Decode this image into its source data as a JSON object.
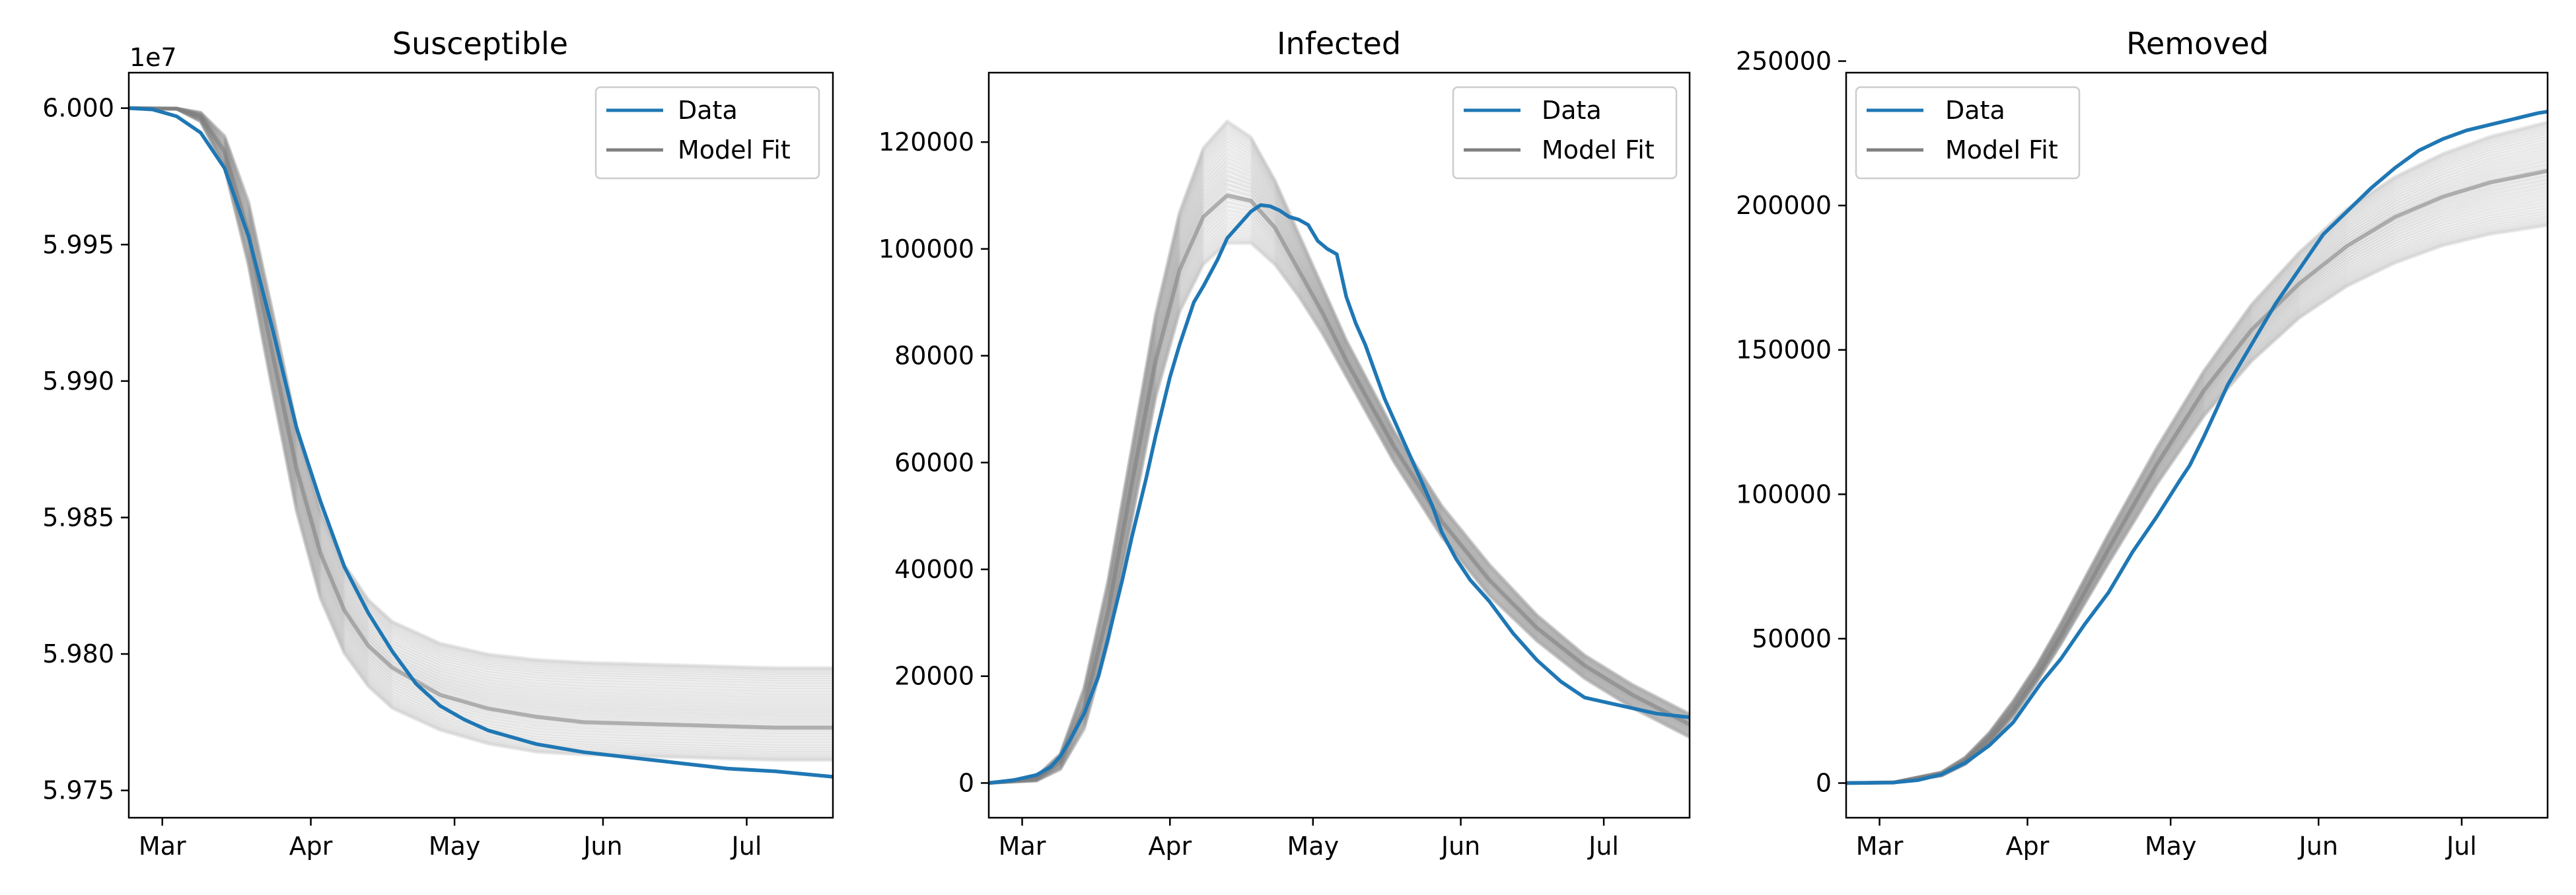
{
  "chart_data": [
    {
      "type": "line",
      "title": "Susceptible",
      "offset_label": "1e7",
      "x_ticks": [
        "Mar",
        "Apr",
        "May",
        "Jun",
        "Jul"
      ],
      "x_tick_days": [
        32,
        63,
        93,
        124,
        154
      ],
      "xlim_days": [
        25,
        172
      ],
      "ylim": [
        5.974,
        6.0013
      ],
      "y_ticks": [
        5.975,
        5.98,
        5.985,
        5.99,
        5.995,
        6.0
      ],
      "y_tick_labels": [
        "5.975",
        "5.980",
        "5.985",
        "5.990",
        "5.995",
        "6.000"
      ],
      "legend": {
        "position": "upper right",
        "entries": [
          "Data",
          "Model Fit"
        ]
      },
      "series": [
        {
          "name": "Data",
          "color": "#1f77b4",
          "x": [
            25,
            30,
            35,
            40,
            45,
            50,
            55,
            60,
            65,
            70,
            75,
            80,
            85,
            90,
            95,
            100,
            110,
            120,
            130,
            140,
            150,
            160,
            172
          ],
          "y": [
            6.0,
            5.99995,
            5.9997,
            5.9991,
            5.9978,
            5.9953,
            5.9919,
            5.9883,
            5.9856,
            5.9832,
            5.9815,
            5.9801,
            5.9789,
            5.9781,
            5.9776,
            5.9772,
            5.9767,
            5.9764,
            5.9762,
            5.976,
            5.9758,
            5.9757,
            5.9755
          ]
        },
        {
          "name": "Model Fit",
          "color": "#808080",
          "type": "ensemble",
          "x": [
            25,
            35,
            40,
            45,
            50,
            55,
            60,
            65,
            70,
            75,
            80,
            90,
            100,
            110,
            120,
            140,
            160,
            172
          ],
          "center": [
            6.0,
            5.99998,
            5.9997,
            5.9984,
            5.9954,
            5.991,
            5.9868,
            5.9837,
            5.9816,
            5.9803,
            5.9795,
            5.9785,
            5.978,
            5.9777,
            5.9775,
            5.9774,
            5.9773,
            5.9773
          ],
          "band_low": [
            6.0,
            5.99997,
            5.9995,
            5.9978,
            5.9942,
            5.9896,
            5.9852,
            5.982,
            5.98,
            5.9788,
            5.978,
            5.9772,
            5.9767,
            5.9764,
            5.9763,
            5.9762,
            5.9761,
            5.9761
          ],
          "band_high": [
            6.0,
            5.99999,
            5.99985,
            5.999,
            5.9966,
            5.9926,
            5.9884,
            5.9853,
            5.9833,
            5.982,
            5.9812,
            5.9804,
            5.98,
            5.9798,
            5.9797,
            5.9796,
            5.9795,
            5.9795
          ]
        }
      ]
    },
    {
      "type": "line",
      "title": "Infected",
      "x_ticks": [
        "Mar",
        "Apr",
        "May",
        "Jun",
        "Jul"
      ],
      "x_tick_days": [
        32,
        63,
        93,
        124,
        154
      ],
      "xlim_days": [
        25,
        172
      ],
      "ylim": [
        -6500,
        133000
      ],
      "y_ticks": [
        0,
        20000,
        40000,
        60000,
        80000,
        100000,
        120000
      ],
      "y_tick_labels": [
        "0",
        "20000",
        "40000",
        "60000",
        "80000",
        "100000",
        "120000"
      ],
      "legend": {
        "position": "upper right",
        "entries": [
          "Data",
          "Model Fit"
        ]
      },
      "series": [
        {
          "name": "Data",
          "color": "#1f77b4",
          "x": [
            25,
            30,
            35,
            38,
            40,
            42,
            45,
            48,
            50,
            53,
            55,
            58,
            60,
            63,
            65,
            68,
            70,
            73,
            75,
            78,
            80,
            82,
            84,
            86,
            88,
            90,
            92,
            94,
            96,
            98,
            100,
            102,
            104,
            106,
            108,
            110,
            112,
            115,
            118,
            120,
            123,
            126,
            130,
            135,
            140,
            145,
            150,
            155,
            160,
            165,
            170,
            172
          ],
          "y": [
            0,
            500,
            1500,
            3000,
            5000,
            8000,
            13000,
            20000,
            27000,
            38000,
            46000,
            57000,
            65000,
            76000,
            82000,
            90000,
            93000,
            98000,
            102000,
            105000,
            107000,
            108200,
            108000,
            107200,
            106000,
            105500,
            104500,
            101500,
            100000,
            99000,
            91000,
            86000,
            82000,
            77000,
            72000,
            68000,
            64000,
            58000,
            52000,
            47000,
            42000,
            38000,
            34000,
            28000,
            23000,
            19000,
            16000,
            15000,
            14000,
            13000,
            12500,
            12300
          ]
        },
        {
          "name": "Model Fit",
          "color": "#808080",
          "type": "ensemble",
          "x": [
            25,
            35,
            40,
            45,
            50,
            55,
            60,
            65,
            70,
            75,
            80,
            85,
            90,
            95,
            100,
            110,
            120,
            130,
            140,
            150,
            160,
            172
          ],
          "center": [
            0,
            800,
            4000,
            14000,
            32000,
            56000,
            79000,
            96000,
            106000,
            110000,
            109000,
            104000,
            96000,
            88000,
            79000,
            63000,
            49000,
            38000,
            29000,
            22000,
            16500,
            11000
          ],
          "band_low": [
            0,
            400,
            2500,
            10000,
            26000,
            49000,
            72000,
            88000,
            97000,
            101000,
            101000,
            97000,
            91000,
            84000,
            76000,
            60000,
            46000,
            35000,
            26500,
            19500,
            14000,
            8500
          ],
          "band_high": [
            0,
            1200,
            5500,
            18000,
            38000,
            63000,
            88000,
            107000,
            119000,
            124000,
            121000,
            113000,
            103000,
            93000,
            83000,
            66000,
            52000,
            41000,
            31500,
            24000,
            18500,
            13000
          ]
        }
      ]
    },
    {
      "type": "line",
      "title": "Removed",
      "x_ticks": [
        "Mar",
        "Apr",
        "May",
        "Jun",
        "Jul"
      ],
      "x_tick_days": [
        32,
        63,
        93,
        124,
        154
      ],
      "xlim_days": [
        25,
        172
      ],
      "ylim": [
        -12000,
        246000
      ],
      "y_ticks": [
        0,
        50000,
        100000,
        150000,
        200000,
        250000
      ],
      "y_tick_labels": [
        "0",
        "50000",
        "100000",
        "150000",
        "200000",
        "250000"
      ],
      "legend": {
        "position": "upper left",
        "entries": [
          "Data",
          "Model Fit"
        ]
      },
      "series": [
        {
          "name": "Data",
          "color": "#1f77b4",
          "x": [
            25,
            35,
            40,
            45,
            50,
            55,
            60,
            63,
            66,
            70,
            75,
            80,
            85,
            90,
            95,
            97,
            100,
            105,
            110,
            115,
            120,
            125,
            130,
            135,
            140,
            145,
            150,
            155,
            160,
            165,
            170,
            172
          ],
          "y": [
            0,
            200,
            1000,
            3000,
            7000,
            13000,
            21000,
            28000,
            35000,
            43000,
            55000,
            66000,
            80000,
            92000,
            105000,
            110000,
            120000,
            138000,
            152000,
            166000,
            178000,
            190000,
            198000,
            206000,
            213000,
            219000,
            223000,
            226000,
            228000,
            230000,
            232000,
            232500
          ]
        },
        {
          "name": "Model Fit",
          "color": "#808080",
          "type": "ensemble",
          "x": [
            25,
            35,
            45,
            50,
            55,
            60,
            65,
            70,
            75,
            80,
            90,
            100,
            110,
            120,
            130,
            140,
            150,
            160,
            172
          ],
          "center": [
            0,
            200,
            3000,
            7500,
            15000,
            25000,
            37000,
            51000,
            66000,
            81000,
            110000,
            136000,
            157000,
            173000,
            186000,
            196000,
            203000,
            208000,
            212000
          ],
          "band_low": [
            0,
            150,
            2500,
            6500,
            13500,
            23000,
            35000,
            48000,
            62000,
            76000,
            103000,
            127000,
            146000,
            161000,
            172000,
            180000,
            186000,
            190000,
            193000
          ],
          "band_high": [
            0,
            300,
            3800,
            9000,
            17500,
            28500,
            41000,
            55500,
            71000,
            86500,
            116000,
            143000,
            166000,
            184000,
            199000,
            210000,
            218000,
            224000,
            229000
          ]
        }
      ]
    }
  ]
}
